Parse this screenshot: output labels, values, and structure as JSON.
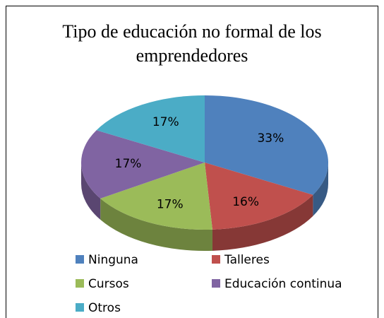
{
  "chart_data": {
    "type": "pie3d",
    "title": "Tipo de educación no formal de los emprendedores",
    "categories": [
      "Ninguna",
      "Talleres",
      "Cursos",
      "Educación continua",
      "Otros"
    ],
    "values": [
      33,
      16,
      17,
      17,
      17
    ],
    "value_labels": [
      "33%",
      "16%",
      "17%",
      "17%",
      "17%"
    ],
    "colors": [
      "#4f81bd",
      "#c0504d",
      "#9bbb59",
      "#8064a2",
      "#4bacc6"
    ],
    "legend": "bottom"
  }
}
